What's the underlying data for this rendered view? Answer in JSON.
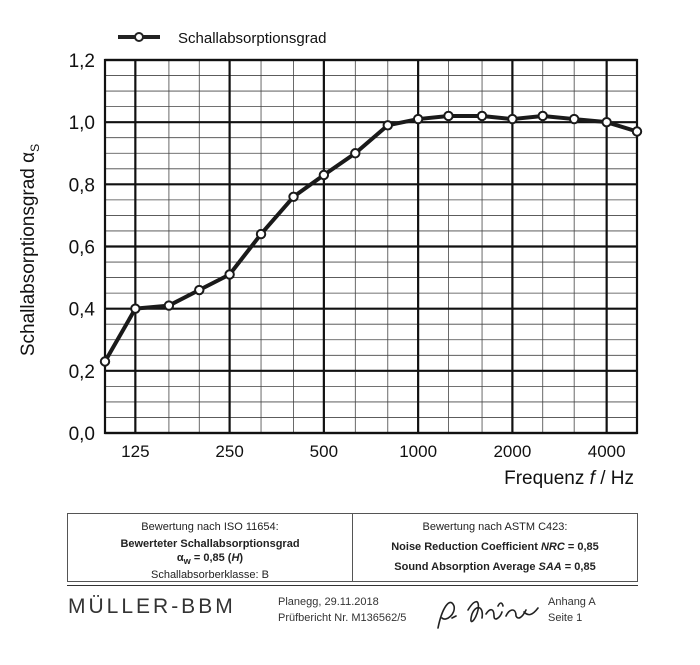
{
  "chart_data": {
    "type": "line",
    "legend": "Schallabsorptionsgrad",
    "legend_position": "top-left",
    "ylabel": "Schallabsorptionsgrad α",
    "ylabel_sub": "S",
    "xlabel_prefix": "Frequenz ",
    "xlabel_var": "f",
    "xlabel_suffix": " / Hz",
    "x_ticks": [
      "125",
      "250",
      "500",
      "1000",
      "2000",
      "4000"
    ],
    "y_ticks": [
      "0,0",
      "0,2",
      "0,4",
      "0,6",
      "0,8",
      "1,0",
      "1,2"
    ],
    "ylim": [
      0,
      1.2
    ],
    "x_scale": "log (third-octave bands)",
    "grid": true,
    "series": [
      {
        "name": "Schallabsorptionsgrad",
        "x": [
          100,
          125,
          160,
          200,
          250,
          315,
          400,
          500,
          630,
          800,
          1000,
          1250,
          1600,
          2000,
          2500,
          3150,
          4000,
          5000
        ],
        "values": [
          0.23,
          0.4,
          0.41,
          0.46,
          0.51,
          0.64,
          0.76,
          0.83,
          0.9,
          0.99,
          1.01,
          1.02,
          1.02,
          1.01,
          1.02,
          1.01,
          1.0,
          0.97
        ]
      }
    ]
  },
  "rating": {
    "left_heading": "Bewertung nach ISO 11654:",
    "left_title": "Bewerteter Schallabsorptionsgrad",
    "left_value_prefix": "α",
    "left_value_sub": "w",
    "left_value_middle": " = 0,85 (",
    "left_value_H": "H",
    "left_value_end": ")",
    "left_class": "Schallabsorberklasse: B",
    "right_heading": "Bewertung nach ASTM C423:",
    "nrc_prefix": "Noise Reduction Coefficient ",
    "nrc_abbr": "NRC",
    "nrc_value": " = 0,85",
    "saa_prefix": "Sound Absorption Average ",
    "saa_abbr": "SAA",
    "saa_value": " = 0,85"
  },
  "footer": {
    "brand": "MÜLLER-BBM",
    "place_date": "Planegg, 29.11.2018",
    "report": "Prüfbericht Nr. M136562/5",
    "annex": "Anhang A",
    "page": "Seite 1"
  }
}
